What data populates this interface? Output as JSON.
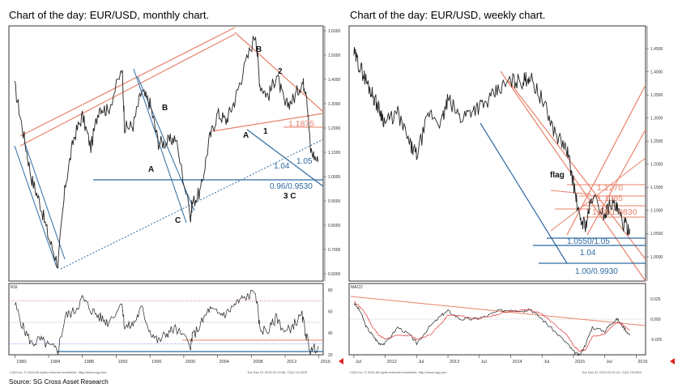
{
  "titles": {
    "left": "Chart of the day: EUR/USD, monthly chart.",
    "right": "Chart of the day: EUR/USD, weekly chart."
  },
  "source": "Source: SG Cross Asset Research",
  "colors": {
    "support": "#2f6aa0",
    "resistance": "#e8826a",
    "price": "#222222",
    "background": "#ffffff"
  },
  "chart_data": [
    {
      "type": "line",
      "panel": "monthly",
      "yticks": [
        "1.6000",
        "1.5000",
        "1.4000",
        "1.3000",
        "1.2000",
        "1.1000",
        "1.0000",
        "0.9000",
        "0.8000",
        "0.7000",
        "0.6000"
      ],
      "ylim": [
        0.6,
        1.6
      ],
      "xticks": [
        "1980",
        "1984",
        "1988",
        "1992",
        "1996",
        "2000",
        "2004",
        "2008",
        "2012",
        "2016"
      ],
      "x": [
        1980.0,
        1981.0,
        1982.0,
        1983.0,
        1984.0,
        1985.1,
        1986.0,
        1987.0,
        1988.0,
        1989.0,
        1990.0,
        1991.0,
        1992.7,
        1993.0,
        1994.0,
        1995.0,
        1996.0,
        1997.0,
        1998.0,
        1999.0,
        2000.8,
        2001.0,
        2002.0,
        2003.0,
        2004.0,
        2005.0,
        2006.0,
        2007.0,
        2008.5,
        2009.0,
        2010.0,
        2011.0,
        2012.0,
        2013.0,
        2014.0,
        2014.5,
        2015.0,
        2015.9
      ],
      "values": [
        1.37,
        1.18,
        0.99,
        0.89,
        0.75,
        0.64,
        0.97,
        1.16,
        1.25,
        1.12,
        1.29,
        1.27,
        1.44,
        1.2,
        1.21,
        1.35,
        1.3,
        1.14,
        1.14,
        1.16,
        0.84,
        0.89,
        0.94,
        1.15,
        1.26,
        1.23,
        1.31,
        1.43,
        1.59,
        1.38,
        1.33,
        1.42,
        1.29,
        1.32,
        1.39,
        1.36,
        1.11,
        1.06
      ],
      "annotations": [
        "B",
        "2",
        "1",
        "A",
        "1.1875",
        "1.05",
        "1.04",
        "0.96/0.9530",
        "3 C",
        "B",
        "A",
        "C"
      ],
      "rsi": {
        "label": "RSI",
        "yticks": [
          "80",
          "60",
          "40",
          "20"
        ],
        "ylim": [
          20,
          80
        ],
        "values": [
          67,
          45,
          30,
          34,
          28,
          24,
          56,
          60,
          72,
          62,
          55,
          50,
          68,
          45,
          48,
          63,
          42,
          32,
          40,
          44,
          29,
          36,
          48,
          62,
          58,
          58,
          66,
          72,
          78,
          44,
          42,
          55,
          40,
          48,
          56,
          38,
          23,
          28
        ]
      },
      "footer": "CQG Inc. © 2015 All rights reserved worldwide. http://www.cqg.com",
      "timestamp": "Tue Dec 01 2015 02:13:56, CQG 15.0520"
    },
    {
      "type": "line",
      "panel": "weekly",
      "yticks": [
        "1.4500",
        "1.4000",
        "1.3500",
        "1.3000",
        "1.2500",
        "1.2000",
        "1.1500",
        "1.1000",
        "1.0500",
        "1.0000"
      ],
      "ylim": [
        0.95,
        1.5
      ],
      "xticks": [
        "Jul",
        "2012",
        "Jul",
        "2013",
        "Jul",
        "2014",
        "Jul",
        "2015",
        "Jul",
        "2016"
      ],
      "x": [
        2011.5,
        2011.6,
        2011.7,
        2011.8,
        2011.9,
        2012.0,
        2012.2,
        2012.4,
        2012.5,
        2012.7,
        2012.9,
        2013.0,
        2013.2,
        2013.4,
        2013.6,
        2013.8,
        2014.0,
        2014.2,
        2014.3,
        2014.5,
        2014.7,
        2014.9,
        2015.0,
        2015.1,
        2015.2,
        2015.3,
        2015.5,
        2015.6,
        2015.7,
        2015.8,
        2015.9
      ],
      "values": [
        1.44,
        1.41,
        1.38,
        1.35,
        1.32,
        1.29,
        1.31,
        1.24,
        1.22,
        1.31,
        1.29,
        1.34,
        1.3,
        1.32,
        1.33,
        1.36,
        1.38,
        1.38,
        1.39,
        1.34,
        1.27,
        1.23,
        1.16,
        1.08,
        1.07,
        1.13,
        1.09,
        1.12,
        1.1,
        1.07,
        1.06
      ],
      "annotations": [
        "flag",
        "1.1270",
        "1.1085",
        "1.08/1.0830",
        "1.0550/1.05",
        "1.04",
        "1.00/0.9930"
      ],
      "macd": {
        "label": "MACD",
        "yticks": [
          "0.025",
          "0.000",
          "-0.025"
        ],
        "ylim": [
          -0.04,
          0.04
        ],
        "macd_values": [
          0.02,
          0.01,
          -0.01,
          -0.02,
          -0.03,
          -0.03,
          -0.01,
          -0.02,
          -0.03,
          -0.01,
          0.005,
          0.01,
          0.0,
          0.0,
          0.003,
          0.01,
          0.012,
          0.01,
          0.013,
          0.0,
          -0.015,
          -0.03,
          -0.04,
          -0.045,
          -0.03,
          -0.01,
          -0.015,
          -0.005,
          0.0,
          -0.01,
          -0.02
        ],
        "signal_values": [
          0.022,
          0.015,
          0.005,
          -0.01,
          -0.02,
          -0.025,
          -0.02,
          -0.02,
          -0.025,
          -0.02,
          -0.005,
          0.005,
          0.004,
          0.001,
          0.002,
          0.006,
          0.01,
          0.011,
          0.012,
          0.006,
          -0.006,
          -0.02,
          -0.032,
          -0.04,
          -0.037,
          -0.022,
          -0.018,
          -0.01,
          -0.004,
          -0.007,
          -0.014
        ]
      },
      "footer": "CQG Inc. © 2015 All rights reserved worldwide. http://www.cqg.com",
      "timestamp": "Tue Dec 01 2015 02:22:24, CQG 15.0520"
    }
  ]
}
